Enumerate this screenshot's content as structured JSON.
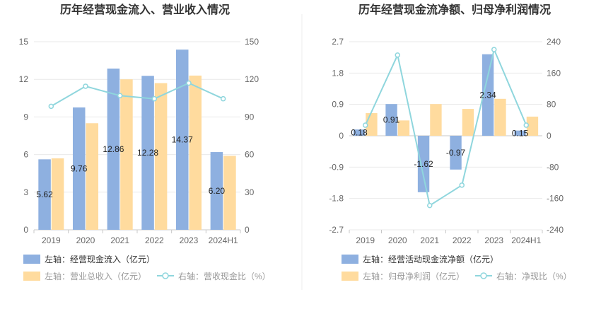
{
  "chart_data": [
    {
      "type": "bar",
      "title": "历年经营现金流入、营业收入情况",
      "categories": [
        "2019",
        "2020",
        "2021",
        "2022",
        "2023",
        "2024H1"
      ],
      "series": [
        {
          "name": "左轴：经营现金流入（亿元）",
          "axis": "left",
          "color": "#8eb0e0",
          "values": [
            5.62,
            9.76,
            12.86,
            12.28,
            14.37,
            6.2
          ],
          "labels": [
            "5.62",
            "9.76",
            "12.86",
            "12.28",
            "14.37",
            "6.20"
          ]
        },
        {
          "name": "左轴：营业总收入（亿元）",
          "axis": "left",
          "color": "#ffdb9e",
          "values": [
            5.7,
            8.5,
            12.0,
            11.7,
            12.3,
            5.9
          ]
        },
        {
          "name": "右轴：营收现金比（%）",
          "axis": "right",
          "type": "line",
          "color": "#8fd6dd",
          "values": [
            98.5,
            114.5,
            107.0,
            104.5,
            117.0,
            104.5
          ]
        }
      ],
      "left_axis": {
        "min": 0,
        "max": 15,
        "ticks": [
          "0",
          "3",
          "6",
          "9",
          "12",
          "15"
        ]
      },
      "right_axis": {
        "min": 0,
        "max": 150,
        "ticks": [
          "0",
          "30",
          "60",
          "90",
          "120",
          "150"
        ]
      },
      "legend": [
        "左轴：经营现金流入（亿元）",
        "左轴：营业总收入（亿元）",
        "右轴：营收现金比（%）"
      ],
      "legend_position": "bottom-left"
    },
    {
      "type": "bar",
      "title": "历年经营现金流净额、归母净利润情况",
      "categories": [
        "2019",
        "2020",
        "2021",
        "2022",
        "2023",
        "2024H1"
      ],
      "series": [
        {
          "name": "左轴：经营活动现金流净额（亿元）",
          "axis": "left",
          "color": "#8eb0e0",
          "values": [
            0.18,
            0.91,
            -1.62,
            -0.97,
            2.34,
            0.15
          ],
          "labels": [
            "0.18",
            "0.91",
            "-1.62",
            "-0.97",
            "2.34",
            "0.15"
          ]
        },
        {
          "name": "左轴：归母净利润（亿元）",
          "axis": "left",
          "color": "#ffdb9e",
          "values": [
            0.65,
            0.44,
            0.91,
            0.77,
            1.06,
            0.55
          ]
        },
        {
          "name": "右轴：净现比（%）",
          "axis": "right",
          "type": "line",
          "color": "#8fd6dd",
          "values": [
            27,
            206,
            -178,
            -126,
            220,
            27
          ]
        }
      ],
      "left_axis": {
        "min": -2.7,
        "max": 2.7,
        "ticks": [
          "-2.7",
          "-1.8",
          "-0.9",
          "0",
          "0.9",
          "1.8",
          "2.7"
        ]
      },
      "right_axis": {
        "min": -240,
        "max": 240,
        "ticks": [
          "-240",
          "-160",
          "-80",
          "0",
          "80",
          "160",
          "240"
        ]
      },
      "legend": [
        "左轴：经营活动现金流净额（亿元）",
        "左轴：归母净利润（亿元）",
        "右轴：净现比（%）"
      ],
      "legend_position": "bottom-left"
    }
  ]
}
